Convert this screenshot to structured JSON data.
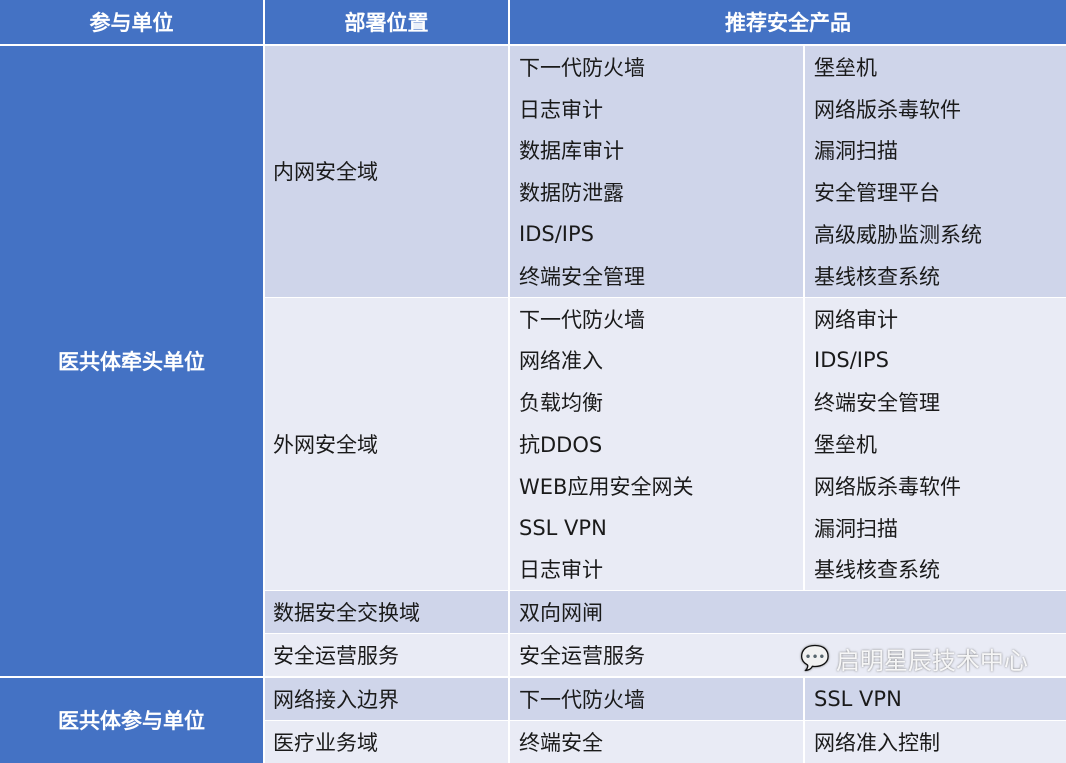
{
  "header": [
    "参与单位",
    "部署位置",
    "推荐安全产品"
  ],
  "units": [
    {
      "name": "医共体牵头单位",
      "sections": [
        {
          "location": "内网安全域",
          "shade": "dark",
          "col1": [
            "下一代防火墙",
            "日志审计",
            "数据库审计",
            "数据防泄露",
            "IDS/IPS",
            "终端安全管理"
          ],
          "col2": [
            "堡垒机",
            "网络版杀毒软件",
            "漏洞扫描",
            "安全管理平台",
            "高级威胁监测系统",
            "基线核查系统"
          ]
        },
        {
          "location": "外网安全域",
          "shade": "light",
          "col1": [
            "下一代防火墙",
            "网络准入",
            "负载均衡",
            "抗DDOS",
            "WEB应用安全网关",
            "SSL VPN",
            "日志审计"
          ],
          "col2": [
            "网络审计",
            "IDS/IPS",
            "终端安全管理",
            "堡垒机",
            "网络版杀毒软件",
            "漏洞扫描",
            "基线核查系统"
          ]
        },
        {
          "location": "数据安全交换域",
          "shade": "dark",
          "col1": [
            "双向网闸"
          ],
          "col2": null
        },
        {
          "location": "安全运营服务",
          "shade": "light",
          "col1": [
            "安全运营服务"
          ],
          "col2": null
        }
      ]
    },
    {
      "name": "医共体参与单位",
      "sections": [
        {
          "location": "网络接入边界",
          "shade": "dark",
          "col1": [
            "下一代防火墙"
          ],
          "col2": [
            "SSL VPN"
          ]
        },
        {
          "location": "医疗业务域",
          "shade": "light",
          "col1": [
            "终端安全"
          ],
          "col2": [
            "网络准入控制"
          ]
        }
      ]
    }
  ],
  "colors": {
    "header": "#4472c4",
    "dark": "#cfd5ea",
    "light": "#e9ebf5"
  },
  "watermark": {
    "icon": "wechat-icon",
    "text": "启明星辰技术中心"
  }
}
